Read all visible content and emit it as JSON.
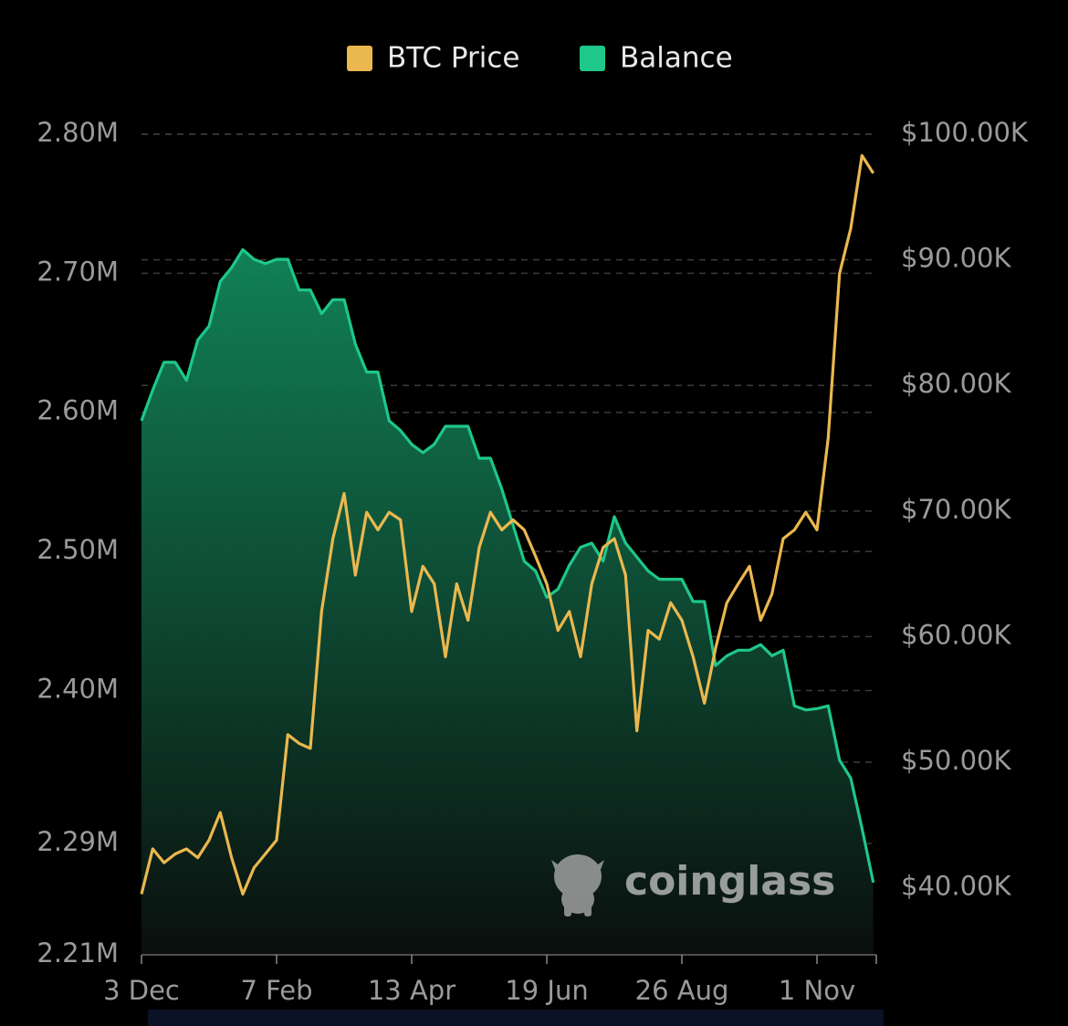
{
  "chart_data": {
    "type": "line",
    "categories": [
      "3 Dec",
      null,
      null,
      null,
      null,
      null,
      null,
      null,
      null,
      null,
      null,
      null,
      "7 Feb",
      null,
      null,
      null,
      null,
      null,
      null,
      null,
      null,
      null,
      null,
      null,
      "13 Apr",
      null,
      null,
      null,
      null,
      null,
      null,
      null,
      null,
      null,
      null,
      null,
      "19 Jun",
      null,
      null,
      null,
      null,
      null,
      null,
      null,
      null,
      null,
      null,
      null,
      "26 Aug",
      null,
      null,
      null,
      null,
      null,
      null,
      null,
      null,
      null,
      null,
      null,
      "1 Nov",
      null,
      null,
      null,
      null,
      null
    ],
    "series": [
      {
        "name": "BTC Price",
        "color": "#eab84f",
        "axis": "y2",
        "values": [
          39500,
          43100,
          42000,
          42700,
          43100,
          42400,
          43800,
          46000,
          42400,
          39500,
          41600,
          42700,
          43800,
          52200,
          51500,
          51100,
          62000,
          67800,
          71400,
          64900,
          69900,
          68500,
          69900,
          69300,
          62000,
          65600,
          64200,
          58400,
          64200,
          61300,
          67100,
          69900,
          68500,
          69300,
          68500,
          66400,
          64200,
          60500,
          62000,
          58400,
          64200,
          67100,
          67800,
          64900,
          52500,
          60500,
          59800,
          62700,
          61300,
          58400,
          54700,
          59100,
          62700,
          64200,
          65600,
          61300,
          63400,
          67800,
          68500,
          69900,
          68500,
          75800,
          88900,
          92500,
          98300,
          96900
        ]
      },
      {
        "name": "Balance",
        "color": "#1ec78a",
        "axis": "y",
        "values": [
          2594000,
          2616000,
          2636000,
          2636000,
          2623000,
          2652000,
          2662000,
          2694000,
          2704000,
          2717000,
          2710000,
          2707000,
          2710000,
          2710000,
          2688000,
          2688000,
          2671000,
          2681000,
          2681000,
          2649000,
          2629000,
          2629000,
          2594000,
          2587000,
          2577000,
          2571000,
          2577000,
          2590000,
          2590000,
          2590000,
          2567000,
          2567000,
          2545000,
          2519000,
          2493000,
          2486000,
          2467000,
          2473000,
          2490000,
          2503000,
          2506000,
          2493000,
          2525000,
          2506000,
          2496000,
          2486000,
          2480000,
          2480000,
          2480000,
          2464000,
          2464000,
          2418000,
          2425000,
          2429000,
          2429000,
          2433000,
          2425000,
          2429000,
          2389000,
          2386000,
          2387000,
          2389000,
          2350000,
          2337000,
          2301000,
          2262000
        ]
      }
    ],
    "ylim": [
      2210000,
      2800000
    ],
    "yticks": [
      {
        "value": 2800000,
        "label": "2.80M"
      },
      {
        "value": 2700000,
        "label": "2.70M"
      },
      {
        "value": 2600000,
        "label": "2.60M"
      },
      {
        "value": 2500000,
        "label": "2.50M"
      },
      {
        "value": 2400000,
        "label": "2.40M"
      },
      {
        "value": 2290000,
        "label": "2.29M"
      },
      {
        "value": 2210000,
        "label": "2.21M"
      }
    ],
    "y2lim": [
      34670,
      100000
    ],
    "y2ticks": [
      {
        "value": 100000,
        "label": "$100.00K"
      },
      {
        "value": 90000,
        "label": "$90.00K"
      },
      {
        "value": 80000,
        "label": "$80.00K"
      },
      {
        "value": 70000,
        "label": "$70.00K"
      },
      {
        "value": 60000,
        "label": "$60.00K"
      },
      {
        "value": 50000,
        "label": "$50.00K"
      },
      {
        "value": 40000,
        "label": "$40.00K"
      }
    ],
    "grid": true,
    "legend": "top",
    "watermark": "coinglass"
  }
}
